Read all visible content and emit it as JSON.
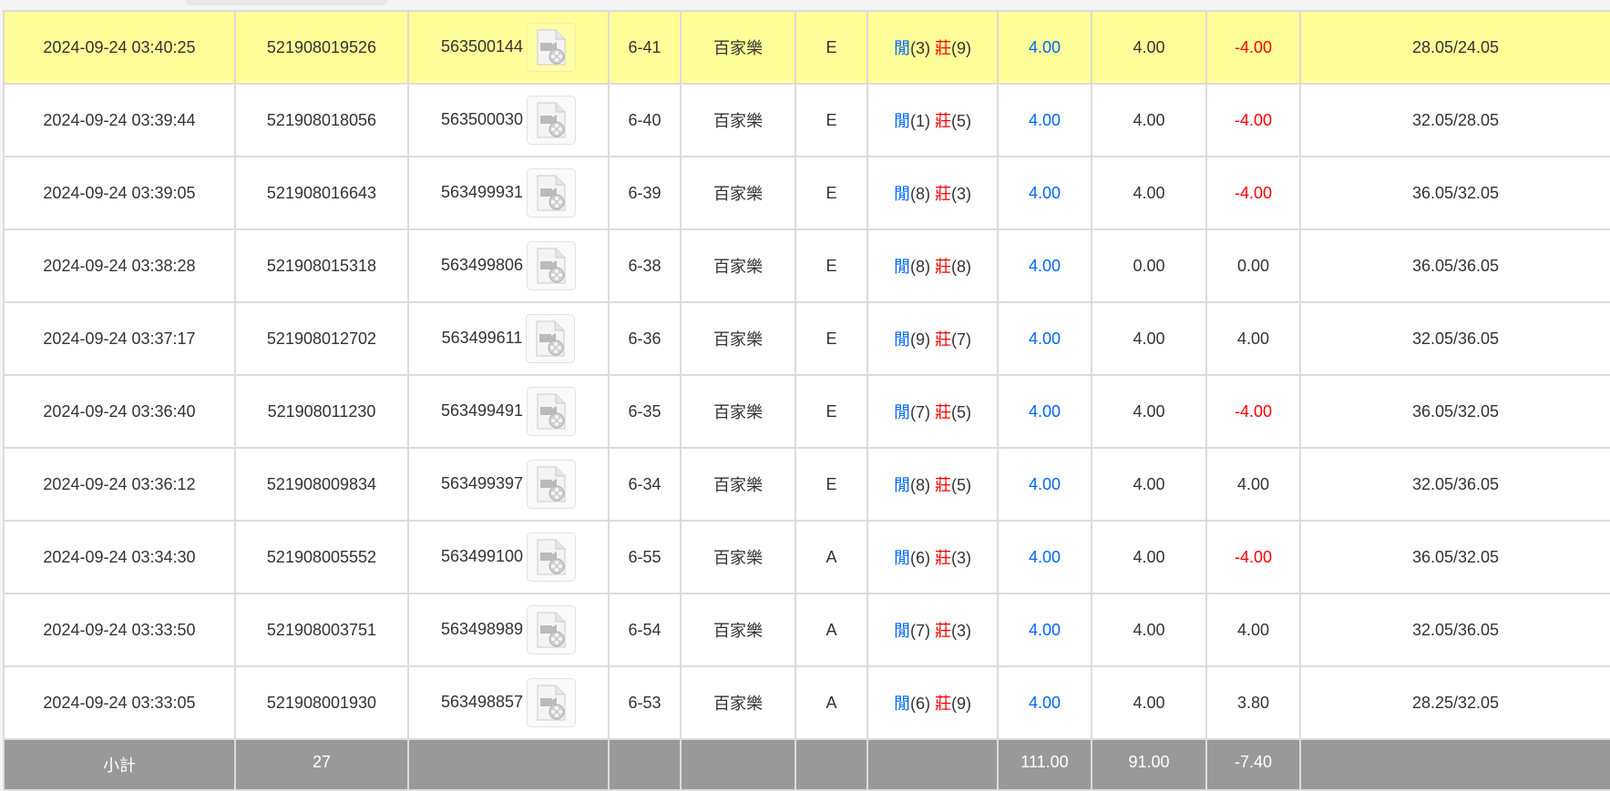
{
  "icon": "video-file-icon",
  "colors": {
    "highlight": "#ffff99",
    "positive": "#0066ff",
    "negative": "#ff0000",
    "subtotal_bg": "#999999"
  },
  "player_label": "閒",
  "banker_label": "莊",
  "rows": [
    {
      "time": "2024-09-24 03:40:25",
      "bet_id": "521908019526",
      "round_id": "563500144",
      "table": "6-41",
      "game": "百家樂",
      "type": "E",
      "player": "(3)",
      "banker": "(9)",
      "bet": "4.00",
      "valid": "4.00",
      "result": "-4.00",
      "neg": true,
      "balance": "28.05/24.05",
      "highlight": true
    },
    {
      "time": "2024-09-24 03:39:44",
      "bet_id": "521908018056",
      "round_id": "563500030",
      "table": "6-40",
      "game": "百家樂",
      "type": "E",
      "player": "(1)",
      "banker": "(5)",
      "bet": "4.00",
      "valid": "4.00",
      "result": "-4.00",
      "neg": true,
      "balance": "32.05/28.05"
    },
    {
      "time": "2024-09-24 03:39:05",
      "bet_id": "521908016643",
      "round_id": "563499931",
      "table": "6-39",
      "game": "百家樂",
      "type": "E",
      "player": "(8)",
      "banker": "(3)",
      "bet": "4.00",
      "valid": "4.00",
      "result": "-4.00",
      "neg": true,
      "balance": "36.05/32.05"
    },
    {
      "time": "2024-09-24 03:38:28",
      "bet_id": "521908015318",
      "round_id": "563499806",
      "table": "6-38",
      "game": "百家樂",
      "type": "E",
      "player": "(8)",
      "banker": "(8)",
      "bet": "4.00",
      "valid": "0.00",
      "result": "0.00",
      "neg": false,
      "balance": "36.05/36.05"
    },
    {
      "time": "2024-09-24 03:37:17",
      "bet_id": "521908012702",
      "round_id": "563499611",
      "table": "6-36",
      "game": "百家樂",
      "type": "E",
      "player": "(9)",
      "banker": "(7)",
      "bet": "4.00",
      "valid": "4.00",
      "result": "4.00",
      "neg": false,
      "balance": "32.05/36.05"
    },
    {
      "time": "2024-09-24 03:36:40",
      "bet_id": "521908011230",
      "round_id": "563499491",
      "table": "6-35",
      "game": "百家樂",
      "type": "E",
      "player": "(7)",
      "banker": "(5)",
      "bet": "4.00",
      "valid": "4.00",
      "result": "-4.00",
      "neg": true,
      "balance": "36.05/32.05"
    },
    {
      "time": "2024-09-24 03:36:12",
      "bet_id": "521908009834",
      "round_id": "563499397",
      "table": "6-34",
      "game": "百家樂",
      "type": "E",
      "player": "(8)",
      "banker": "(5)",
      "bet": "4.00",
      "valid": "4.00",
      "result": "4.00",
      "neg": false,
      "balance": "32.05/36.05"
    },
    {
      "time": "2024-09-24 03:34:30",
      "bet_id": "521908005552",
      "round_id": "563499100",
      "table": "6-55",
      "game": "百家樂",
      "type": "A",
      "player": "(6)",
      "banker": "(3)",
      "bet": "4.00",
      "valid": "4.00",
      "result": "-4.00",
      "neg": true,
      "balance": "36.05/32.05"
    },
    {
      "time": "2024-09-24 03:33:50",
      "bet_id": "521908003751",
      "round_id": "563498989",
      "table": "6-54",
      "game": "百家樂",
      "type": "A",
      "player": "(7)",
      "banker": "(3)",
      "bet": "4.00",
      "valid": "4.00",
      "result": "4.00",
      "neg": false,
      "balance": "32.05/36.05"
    },
    {
      "time": "2024-09-24 03:33:05",
      "bet_id": "521908001930",
      "round_id": "563498857",
      "table": "6-53",
      "game": "百家樂",
      "type": "A",
      "player": "(6)",
      "banker": "(9)",
      "bet": "4.00",
      "valid": "4.00",
      "result": "3.80",
      "neg": false,
      "balance": "28.25/32.05"
    }
  ],
  "subtotal": {
    "label": "小計",
    "count": "27",
    "bet": "111.00",
    "valid": "91.00",
    "result": "-7.40"
  }
}
